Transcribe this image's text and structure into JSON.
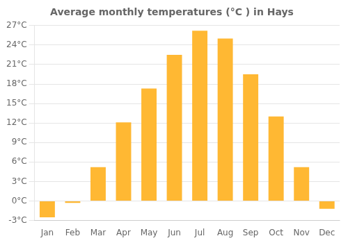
{
  "chart_data": {
    "type": "bar",
    "title": "Average monthly temperatures (°C ) in Hays",
    "categories": [
      "Jan",
      "Feb",
      "Mar",
      "Apr",
      "May",
      "Jun",
      "Jul",
      "Aug",
      "Sep",
      "Oct",
      "Nov",
      "Dec"
    ],
    "values": [
      -2.5,
      -0.3,
      5.2,
      12.1,
      17.3,
      22.5,
      26.2,
      25.0,
      19.5,
      13.0,
      5.2,
      -1.2
    ],
    "color": "#FFB833",
    "ylim": [
      -3,
      27
    ],
    "yticks": [
      {
        "value": -3,
        "label": "-3°C"
      },
      {
        "value": 0,
        "label": "0°C"
      },
      {
        "value": 3,
        "label": "3°C"
      },
      {
        "value": 6,
        "label": "6°C"
      },
      {
        "value": 9,
        "label": "9°C"
      },
      {
        "value": 12,
        "label": "12°C"
      },
      {
        "value": 15,
        "label": "15°C"
      },
      {
        "value": 18,
        "label": "18°C"
      },
      {
        "value": 21,
        "label": "21°C"
      },
      {
        "value": 24,
        "label": "24°C"
      },
      {
        "value": 27,
        "label": "27°C"
      }
    ],
    "grid": true
  }
}
